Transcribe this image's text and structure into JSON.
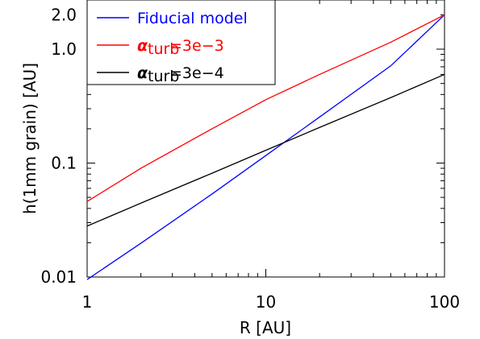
{
  "chart_data": {
    "type": "line",
    "xlabel": "R [AU]",
    "ylabel": "h(1mm grain) [AU]",
    "xscale": "log",
    "yscale": "log",
    "xlim": [
      1,
      100
    ],
    "ylim": [
      0.01,
      2.7
    ],
    "grid": false,
    "legend_position": "top-left",
    "x_ticks": [
      {
        "value": 1,
        "label": "1"
      },
      {
        "value": 10,
        "label": "10"
      },
      {
        "value": 100,
        "label": "100"
      }
    ],
    "y_ticks": [
      {
        "value": 0.01,
        "label": "0.01"
      },
      {
        "value": 0.1,
        "label": "0.1"
      },
      {
        "value": 1.0,
        "label": "1.0"
      },
      {
        "value": 2.0,
        "label": "2.0"
      }
    ],
    "series": [
      {
        "name": "Fiducial model",
        "legend": {
          "symbol": "",
          "text": "Fiducial model"
        },
        "color": "#0000ff",
        "x": [
          1,
          2,
          5,
          10,
          20,
          50,
          100
        ],
        "y": [
          0.0095,
          0.0198,
          0.0535,
          0.1164,
          0.2536,
          0.7133,
          2.0
        ]
      },
      {
        "name": "α_turb=3e−3",
        "legend": {
          "symbol": "α",
          "sub": "turb",
          "text": "=3e−3"
        },
        "color": "#ff0000",
        "x": [
          1,
          2,
          5,
          10,
          20,
          50,
          100
        ],
        "y": [
          0.046,
          0.09,
          0.2,
          0.36,
          0.6,
          1.15,
          2.0
        ]
      },
      {
        "name": "α_turb=3e−4",
        "legend": {
          "symbol": "α",
          "sub": "turb",
          "text": "=3e−4"
        },
        "color": "#000000",
        "x": [
          1,
          2,
          5,
          10,
          20,
          50,
          100
        ],
        "y": [
          0.028,
          0.0445,
          0.0815,
          0.1295,
          0.2055,
          0.3755,
          0.6
        ]
      }
    ]
  }
}
